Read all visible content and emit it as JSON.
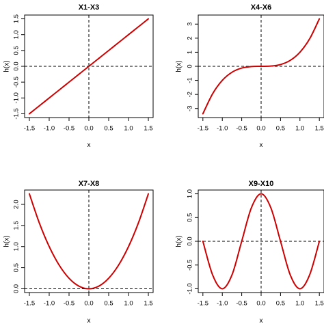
{
  "chart_data": [
    {
      "type": "line",
      "title": "X1-X3",
      "xlabel": "x",
      "ylabel": "h(x)",
      "xlim": [
        -1.5,
        1.5
      ],
      "ylim": [
        -1.5,
        1.5
      ],
      "xticks": [
        "-1.5",
        "-1.0",
        "-0.5",
        "0.0",
        "0.5",
        "1.0",
        "1.5"
      ],
      "yticks": [
        "-1.5",
        "-1.0",
        "-0.5",
        "0.0",
        "0.5",
        "1.0",
        "1.5"
      ],
      "x": [
        -1.5,
        -1.25,
        -1.0,
        -0.75,
        -0.5,
        -0.25,
        0.0,
        0.25,
        0.5,
        0.75,
        1.0,
        1.25,
        1.5
      ],
      "series": [
        {
          "values": [
            -1.5,
            -1.25,
            -1.0,
            -0.75,
            -0.5,
            -0.25,
            0.0,
            0.25,
            0.5,
            0.75,
            1.0,
            1.25,
            1.5
          ]
        }
      ],
      "reference_lines": {
        "h": 0,
        "v": 0
      },
      "line_color": "#cc0000"
    },
    {
      "type": "line",
      "title": "X4-X6",
      "xlabel": "x",
      "ylabel": "h(x)",
      "xlim": [
        -1.5,
        1.5
      ],
      "ylim": [
        -3.375,
        3.375
      ],
      "xticks": [
        "-1.5",
        "-1.0",
        "-0.5",
        "0.0",
        "0.5",
        "1.0",
        "1.5"
      ],
      "yticks": [
        "-3",
        "-2",
        "-1",
        "0",
        "1",
        "2",
        "3"
      ],
      "x": [
        -1.5,
        -1.25,
        -1.0,
        -0.75,
        -0.5,
        -0.25,
        0.0,
        0.25,
        0.5,
        0.75,
        1.0,
        1.25,
        1.5
      ],
      "series": [
        {
          "values": [
            -3.375,
            -1.953,
            -1.0,
            -0.422,
            -0.125,
            -0.016,
            0.0,
            0.016,
            0.125,
            0.422,
            1.0,
            1.953,
            3.375
          ]
        }
      ],
      "reference_lines": {
        "h": 0,
        "v": 0
      },
      "line_color": "#cc0000"
    },
    {
      "type": "line",
      "title": "X7-X8",
      "xlabel": "x",
      "ylabel": "h(x)",
      "xlim": [
        -1.5,
        1.5
      ],
      "ylim": [
        0,
        2.25
      ],
      "xticks": [
        "-1.5",
        "-1.0",
        "-0.5",
        "0.0",
        "0.5",
        "1.0",
        "1.5"
      ],
      "yticks": [
        "0.0",
        "0.5",
        "1.0",
        "1.5",
        "2.0"
      ],
      "x": [
        -1.5,
        -1.25,
        -1.0,
        -0.75,
        -0.5,
        -0.25,
        0.0,
        0.25,
        0.5,
        0.75,
        1.0,
        1.25,
        1.5
      ],
      "series": [
        {
          "values": [
            2.25,
            1.5625,
            1.0,
            0.5625,
            0.25,
            0.0625,
            0.0,
            0.0625,
            0.25,
            0.5625,
            1.0,
            1.5625,
            2.25
          ]
        }
      ],
      "reference_lines": {
        "h": 0,
        "v": 0
      },
      "line_color": "#cc0000"
    },
    {
      "type": "line",
      "title": "X9-X10",
      "xlabel": "x",
      "ylabel": "h(x)",
      "xlim": [
        -1.5,
        1.5
      ],
      "ylim": [
        -1.0,
        1.0
      ],
      "xticks": [
        "-1.5",
        "-1.0",
        "-0.5",
        "0.0",
        "0.5",
        "1.0",
        "1.5"
      ],
      "yticks": [
        "-1.0",
        "-0.5",
        "0.0",
        "0.5",
        "1.0"
      ],
      "x": [
        -1.5,
        -1.25,
        -1.0,
        -0.75,
        -0.5,
        -0.25,
        0.0,
        0.25,
        0.5,
        0.75,
        1.0,
        1.25,
        1.5
      ],
      "series": [
        {
          "values": [
            0.0,
            -0.707,
            -1.0,
            -0.707,
            0.0,
            0.707,
            1.0,
            0.707,
            0.0,
            -0.707,
            -1.0,
            -0.707,
            0.0
          ]
        }
      ],
      "reference_lines": {
        "h": 0,
        "v": 0
      },
      "line_color": "#cc0000"
    }
  ]
}
